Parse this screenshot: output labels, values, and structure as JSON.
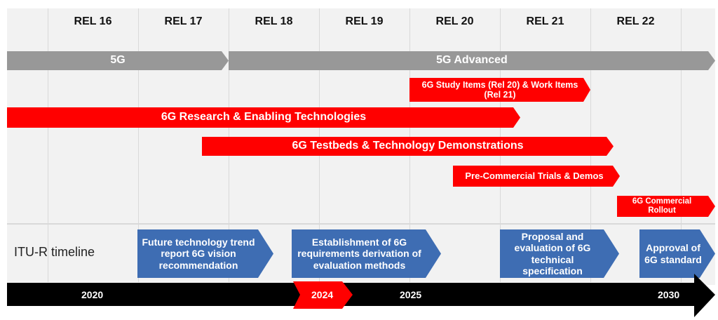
{
  "releases": [
    "REL 16",
    "REL 17",
    "REL 18",
    "REL 19",
    "REL 20",
    "REL 21",
    "REL 22"
  ],
  "bars": {
    "fiveg": "5G",
    "fiveg_advanced": "5G Advanced",
    "study_items": "6G Study Items (Rel 20) & Work Items (Rel 21)",
    "research": "6G Research & Enabling Technologies",
    "testbeds": "6G Testbeds & Technology Demonstrations",
    "precommercial": "Pre-Commercial Trials & Demos",
    "commercial": "6G Commercial Rollout"
  },
  "itu": {
    "label": "ITU-R timeline",
    "steps": [
      "Future technology trend report 6G vision recommendation",
      "Establishment of 6G requirements derivation of evaluation methods",
      "Proposal and evaluation of 6G technical specification",
      "Approval of 6G standard"
    ]
  },
  "years": [
    "2020",
    "2024",
    "2025",
    "2030"
  ],
  "colors": {
    "red": "#ff0000",
    "gray": "#989898",
    "blue": "#3e6db3",
    "black": "#000000"
  }
}
